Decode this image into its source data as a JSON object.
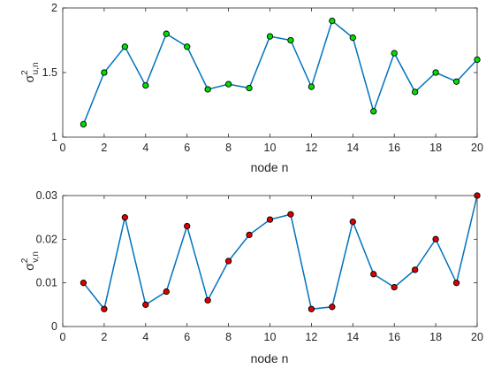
{
  "chart_data": [
    {
      "type": "line",
      "x": [
        1,
        2,
        3,
        4,
        5,
        6,
        7,
        8,
        9,
        10,
        11,
        12,
        13,
        14,
        15,
        16,
        17,
        18,
        19,
        20
      ],
      "series": [
        {
          "values": [
            1.1,
            1.5,
            1.7,
            1.4,
            1.8,
            1.7,
            1.37,
            1.41,
            1.38,
            1.78,
            1.75,
            1.39,
            1.9,
            1.77,
            1.2,
            1.65,
            1.35,
            1.5,
            1.43,
            1.6
          ]
        }
      ],
      "xlabel": "node n",
      "ylabel_base": "σ",
      "ylabel_sup": "2",
      "ylabel_sub": "u,n",
      "xlim": [
        0,
        20
      ],
      "ylim": [
        1,
        2
      ],
      "xticks": [
        "0",
        "2",
        "4",
        "6",
        "8",
        "10",
        "12",
        "14",
        "16",
        "18",
        "20"
      ],
      "yticks": [
        "1",
        "1.5",
        "2"
      ],
      "grid": false,
      "line_color": "#0072BD",
      "marker_color": "#00DD00"
    },
    {
      "type": "line",
      "x": [
        1,
        2,
        3,
        4,
        5,
        6,
        7,
        8,
        9,
        10,
        11,
        12,
        13,
        14,
        15,
        16,
        17,
        18,
        19,
        20
      ],
      "series": [
        {
          "values": [
            0.01,
            0.004,
            0.025,
            0.005,
            0.008,
            0.023,
            0.006,
            0.015,
            0.021,
            0.0245,
            0.0257,
            0.004,
            0.0045,
            0.024,
            0.012,
            0.009,
            0.013,
            0.02,
            0.01,
            0.03
          ]
        }
      ],
      "xlabel": "node n",
      "ylabel_base": "σ",
      "ylabel_sup": "2",
      "ylabel_sub": "v,n",
      "xlim": [
        0,
        20
      ],
      "ylim": [
        0,
        0.03
      ],
      "xticks": [
        "0",
        "2",
        "4",
        "6",
        "8",
        "10",
        "12",
        "14",
        "16",
        "18",
        "20"
      ],
      "yticks": [
        "0",
        "0.01",
        "0.02",
        "0.03"
      ],
      "grid": false,
      "line_color": "#0072BD",
      "marker_color": "#DD0000"
    }
  ]
}
